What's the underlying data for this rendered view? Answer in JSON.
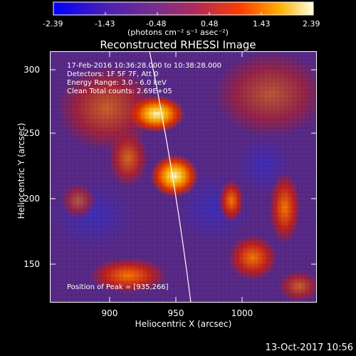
{
  "colorbar": {
    "ticks": [
      "-2.39",
      "-1.43",
      "-0.48",
      "0.48",
      "1.43",
      "2.39"
    ],
    "unit": "(photons cm⁻² s⁻¹ asec⁻²)",
    "colors": [
      "#0000ff",
      "#4b1fb5",
      "#7a2e8a",
      "#b12a5a",
      "#ff3c00",
      "#ffb000",
      "#ffffe0"
    ]
  },
  "title": "Reconstructed RHESSI Image",
  "info": {
    "time": "17-Feb-2016 10:36:28.000 to 10:38:28.000",
    "detectors": "Detectors: 1F 5F 7F, Att 0",
    "energy": "Energy Range: 3.0 - 6.0 keV",
    "clean": "Clean    Total counts: 2.69E+05"
  },
  "peak_label": "Position of Peak = [935,266]",
  "axes": {
    "xlabel": "Heliocentric X (arcsec)",
    "ylabel": "Heliocentric Y (arcsec)",
    "xticks": [
      "900",
      "950",
      "1000"
    ],
    "yticks": [
      "300",
      "250",
      "200",
      "150"
    ]
  },
  "timestamp": "13-Oct-2017 10:56"
}
